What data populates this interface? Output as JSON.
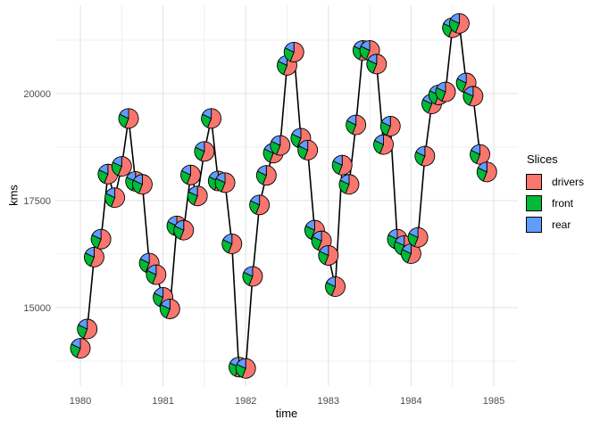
{
  "chart_data": {
    "type": "scatter-pie-line",
    "title": "",
    "xlabel": "time",
    "ylabel": "kms",
    "legend_title": "Slices",
    "legend_position": "right",
    "grid": true,
    "x_range": [
      1979.7,
      1985.6
    ],
    "y_range": [
      13170,
      22060
    ],
    "x_ticks": [
      {
        "v": 1980,
        "label": "1980"
      },
      {
        "v": 1981,
        "label": "1981"
      },
      {
        "v": 1982,
        "label": "1982"
      },
      {
        "v": 1983,
        "label": "1983"
      },
      {
        "v": 1984,
        "label": "1984"
      },
      {
        "v": 1985,
        "label": "1985"
      }
    ],
    "x_grid_minor": [
      1980.5,
      1981.5,
      1982.5,
      1983.5,
      1984.5
    ],
    "y_ticks": [
      {
        "v": 15000,
        "label": "15000"
      },
      {
        "v": 17500,
        "label": "17500"
      },
      {
        "v": 20000,
        "label": "20000"
      }
    ],
    "y_grid_minor": [
      13750,
      16250,
      18750,
      21250
    ],
    "slices": [
      {
        "label": "drivers",
        "frac": 0.56,
        "color": "#F8766D"
      },
      {
        "label": "front",
        "frac": 0.26,
        "color": "#00BA38"
      },
      {
        "label": "rear",
        "frac": 0.18,
        "color": "#619CFF"
      }
    ],
    "pie_radius_px": 11,
    "palette": {
      "line": "#000000",
      "axis_text": "#4D4D4D",
      "title_text": "#000000",
      "grid_major": "#E3E3E3",
      "grid_minor": "#F0F0F0",
      "background": "#FFFFFF"
    },
    "points": [
      {
        "t": 1980.0,
        "kms": 14050
      },
      {
        "t": 1980.0833,
        "kms": 14500
      },
      {
        "t": 1980.1667,
        "kms": 16180
      },
      {
        "t": 1980.25,
        "kms": 16600
      },
      {
        "t": 1980.3333,
        "kms": 18120
      },
      {
        "t": 1980.4167,
        "kms": 17570
      },
      {
        "t": 1980.5,
        "kms": 18300
      },
      {
        "t": 1980.5833,
        "kms": 19420
      },
      {
        "t": 1980.6667,
        "kms": 17950
      },
      {
        "t": 1980.75,
        "kms": 17880
      },
      {
        "t": 1980.8333,
        "kms": 16040
      },
      {
        "t": 1980.9167,
        "kms": 15770
      },
      {
        "t": 1981.0,
        "kms": 15240
      },
      {
        "t": 1981.0833,
        "kms": 14970
      },
      {
        "t": 1981.1667,
        "kms": 16910
      },
      {
        "t": 1981.25,
        "kms": 16810
      },
      {
        "t": 1981.3333,
        "kms": 18100
      },
      {
        "t": 1981.4167,
        "kms": 17610
      },
      {
        "t": 1981.5,
        "kms": 18650
      },
      {
        "t": 1981.5833,
        "kms": 19420
      },
      {
        "t": 1981.6667,
        "kms": 17960
      },
      {
        "t": 1981.75,
        "kms": 17920
      },
      {
        "t": 1981.8333,
        "kms": 16490
      },
      {
        "t": 1981.9167,
        "kms": 13610
      },
      {
        "t": 1982.0,
        "kms": 13580
      },
      {
        "t": 1982.0833,
        "kms": 15730
      },
      {
        "t": 1982.1667,
        "kms": 17400
      },
      {
        "t": 1982.25,
        "kms": 18090
      },
      {
        "t": 1982.3333,
        "kms": 18610
      },
      {
        "t": 1982.4167,
        "kms": 18790
      },
      {
        "t": 1982.5,
        "kms": 20660
      },
      {
        "t": 1982.5833,
        "kms": 20970
      },
      {
        "t": 1982.6667,
        "kms": 18960
      },
      {
        "t": 1982.75,
        "kms": 18680
      },
      {
        "t": 1982.8333,
        "kms": 16810
      },
      {
        "t": 1982.9167,
        "kms": 16560
      },
      {
        "t": 1983.0,
        "kms": 16220
      },
      {
        "t": 1983.0833,
        "kms": 15490
      },
      {
        "t": 1983.1667,
        "kms": 18330
      },
      {
        "t": 1983.25,
        "kms": 17880
      },
      {
        "t": 1983.3333,
        "kms": 19270
      },
      {
        "t": 1983.4167,
        "kms": 21010
      },
      {
        "t": 1983.5,
        "kms": 21010
      },
      {
        "t": 1983.5833,
        "kms": 20690
      },
      {
        "t": 1983.6667,
        "kms": 18810
      },
      {
        "t": 1983.75,
        "kms": 19240
      },
      {
        "t": 1983.8333,
        "kms": 16600
      },
      {
        "t": 1983.9167,
        "kms": 16450
      },
      {
        "t": 1984.0,
        "kms": 16260
      },
      {
        "t": 1984.0833,
        "kms": 16640
      },
      {
        "t": 1984.1667,
        "kms": 18540
      },
      {
        "t": 1984.25,
        "kms": 19760
      },
      {
        "t": 1984.3333,
        "kms": 19970
      },
      {
        "t": 1984.4167,
        "kms": 20040
      },
      {
        "t": 1984.5,
        "kms": 21540
      },
      {
        "t": 1984.5833,
        "kms": 21640
      },
      {
        "t": 1984.6667,
        "kms": 20250
      },
      {
        "t": 1984.75,
        "kms": 19940
      },
      {
        "t": 1984.8333,
        "kms": 18580
      },
      {
        "t": 1984.9167,
        "kms": 18170
      }
    ]
  }
}
